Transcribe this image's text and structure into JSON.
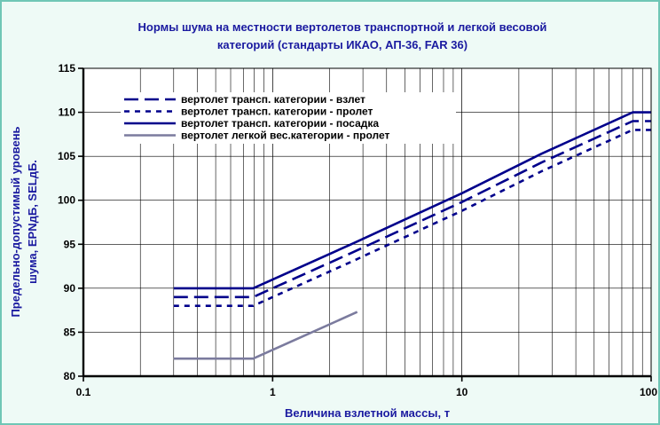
{
  "chart_data": {
    "type": "line",
    "title_lines": [
      "Нормы шума на местности вертолетов транспортной и легкой весовой",
      "категорий (стандарты ИКАО, АП-36, FAR 36)"
    ],
    "xlabel": "Величина взлетной массы, т",
    "ylabel_lines": [
      "Предельно-допустимый уровень",
      "шума, EPNдБ,  SELдБ."
    ],
    "x_scale": "log",
    "xlim": [
      0.1,
      100
    ],
    "ylim": [
      80,
      115
    ],
    "x_ticks": [
      0.1,
      1,
      10,
      100
    ],
    "x_tick_labels": [
      "0.1",
      "1",
      "10",
      "100"
    ],
    "y_ticks": [
      80,
      85,
      90,
      95,
      100,
      105,
      110,
      115
    ],
    "y_tick_labels": [
      "80",
      "85",
      "90",
      "95",
      "100",
      "105",
      "110",
      "115"
    ],
    "grid": true,
    "legend_position": "top-left",
    "colors": {
      "axis_text": "#1a1aa0",
      "plot_background": "#ffffff",
      "frame_background": "#eefaf6",
      "frame_border": "#6fc6b6",
      "series_dark": "#00008b",
      "series_gray": "#7b7b9e"
    },
    "series": [
      {
        "name": "вертолет трансп. категории - взлет",
        "style": "dashed",
        "x": [
          0.3,
          0.788,
          2.6,
          10,
          26.4,
          80,
          100
        ],
        "y": [
          89,
          89,
          94,
          99.8,
          104.3,
          109,
          109
        ]
      },
      {
        "name": "вертолет трансп. категории - пролет",
        "style": "dotted",
        "x": [
          0.3,
          0.788,
          2.6,
          10,
          26.4,
          80,
          100
        ],
        "y": [
          88,
          88,
          93,
          98.8,
          103.3,
          108,
          108
        ]
      },
      {
        "name": "вертолет трансп. категории - посадка",
        "style": "solid",
        "x": [
          0.3,
          0.788,
          2.6,
          10,
          26.4,
          80,
          100
        ],
        "y": [
          90,
          90,
          95,
          100.8,
          105.3,
          110,
          110
        ]
      },
      {
        "name": "вертолет легкой вес.категории - пролет",
        "style": "solid-gray",
        "x": [
          0.3,
          0.788,
          2.8
        ],
        "y": [
          82,
          82,
          87.3
        ]
      }
    ]
  }
}
